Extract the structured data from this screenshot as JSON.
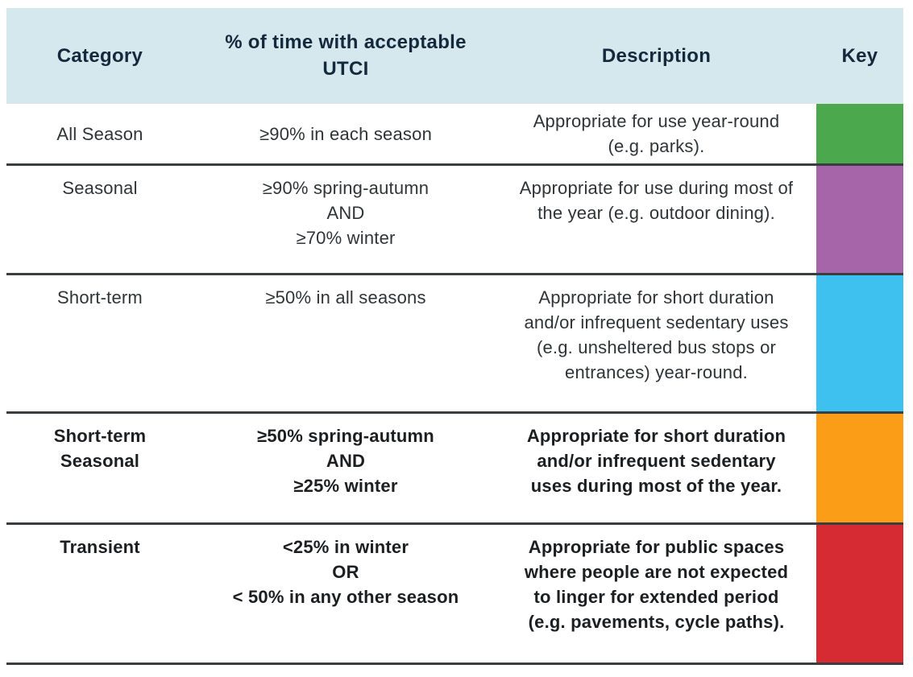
{
  "table": {
    "headers": {
      "category": "Category",
      "utci": "% of time with acceptable\nUTCI",
      "description": "Description",
      "key": "Key"
    },
    "rows": [
      {
        "category": "All Season",
        "utci": "≥90% in each season",
        "description": "Appropriate for use year-round (e.g. parks).",
        "key_color": "#4BA84C",
        "key_color_name": "green"
      },
      {
        "category": "Seasonal",
        "utci": "≥90% spring-autumn\nAND\n≥70% winter",
        "description": "Appropriate for use during most of the year (e.g. outdoor dining).",
        "key_color": "#A565A8",
        "key_color_name": "purple"
      },
      {
        "category": "Short-term",
        "utci": "≥50% in all seasons",
        "description": "Appropriate for short duration and/or infrequent sedentary uses (e.g. unsheltered bus stops or entrances) year-round.",
        "key_color": "#3EC1EE",
        "key_color_name": "cyan"
      },
      {
        "category": "Short-term\nSeasonal",
        "utci": "≥50% spring-autumn\nAND\n≥25% winter",
        "description": "Appropriate for short duration and/or infrequent sedentary uses during most of the year.",
        "key_color": "#FB9D16",
        "key_color_name": "orange"
      },
      {
        "category": "Transient",
        "utci": "<25% in winter\nOR\n< 50% in any other season",
        "description": "Appropriate for public spaces where people are not expected to linger for extended period (e.g. pavements, cycle paths).",
        "key_color": "#D62B33",
        "key_color_name": "red"
      }
    ],
    "colors": {
      "header_background": "#D5E8EE",
      "header_text": "#14293C",
      "body_text": "#303436",
      "row_border": "#3A3E41"
    }
  }
}
